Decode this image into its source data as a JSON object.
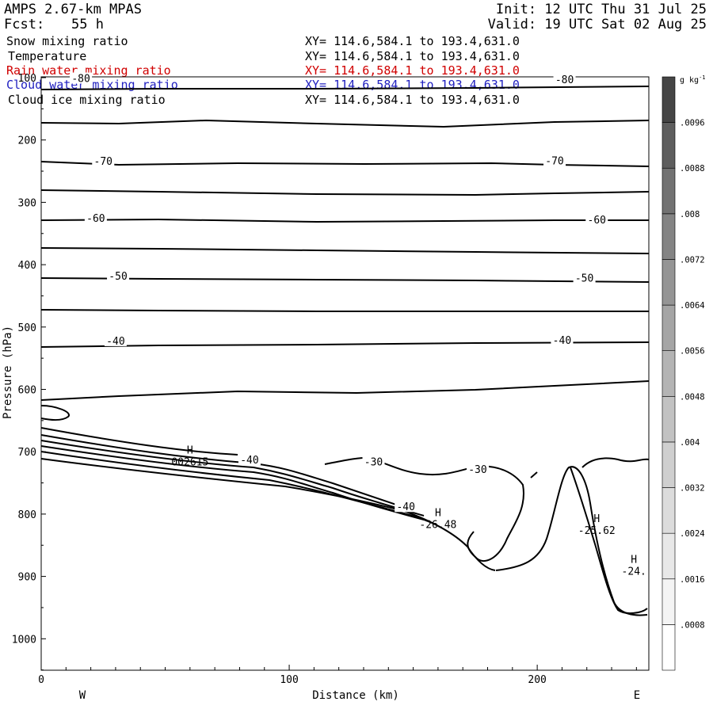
{
  "header": {
    "model": "AMPS 2.67-km MPAS",
    "fcst_label": "Fcst:",
    "fcst_value": "55 h",
    "init": "Init: 12 UTC Thu 31 Jul 25",
    "valid": "Valid: 19 UTC Sat 02 Aug 25"
  },
  "fields": [
    {
      "name": "Snow mixing ratio",
      "xy": "XY= 114.6,584.1 to 193.4,631.0",
      "color": "#000000"
    },
    {
      "name": "Temperature",
      "xy": "XY= 114.6,584.1 to 193.4,631.0",
      "color": "#000000"
    },
    {
      "name": "Rain water mixing ratio",
      "xy": "XY= 114.6,584.1 to 193.4,631.0",
      "color": "#d00000"
    },
    {
      "name": "Cloud water mixing ratio",
      "xy": "XY= 114.6,584.1 to 193.4,631.0",
      "color": "#2020c0"
    },
    {
      "name": "Cloud ice mixing ratio",
      "xy": "XY= 114.6,584.1 to 193.4,631.0",
      "color": "#000000"
    }
  ],
  "chart_data": {
    "type": "contour",
    "xlabel": "Distance (km)",
    "ylabel": "Pressure (hPa)",
    "xlim": [
      0,
      245
    ],
    "ylim": [
      1050,
      100
    ],
    "x_ticks": [
      0,
      100,
      200
    ],
    "y_ticks": [
      100,
      200,
      300,
      400,
      500,
      600,
      700,
      800,
      900,
      1000
    ],
    "x_end_labels": {
      "left": "W",
      "right": "E"
    },
    "isotherm_labels": [
      {
        "text": "-80",
        "x": 16,
        "p": 102
      },
      {
        "text": "-80",
        "x": 211,
        "p": 104
      },
      {
        "text": "-70",
        "x": 25,
        "p": 235
      },
      {
        "text": "-70",
        "x": 207,
        "p": 234
      },
      {
        "text": "-60",
        "x": 22,
        "p": 326
      },
      {
        "text": "-60",
        "x": 224,
        "p": 329
      },
      {
        "text": "-50",
        "x": 31,
        "p": 419
      },
      {
        "text": "-50",
        "x": 219,
        "p": 422
      },
      {
        "text": "-40",
        "x": 30,
        "p": 523
      },
      {
        "text": "-40",
        "x": 210,
        "p": 522
      },
      {
        "text": "-40",
        "x": 84,
        "p": 714
      },
      {
        "text": "-40",
        "x": 147,
        "p": 789
      },
      {
        "text": "-30",
        "x": 134,
        "p": 717
      },
      {
        "text": "-30",
        "x": 176,
        "p": 729
      }
    ],
    "extrema": [
      {
        "mark": "H",
        "value": "002615",
        "x": 60,
        "p": 703
      },
      {
        "mark": "H",
        "value": "-26.48",
        "x": 160,
        "p": 803
      },
      {
        "mark": "H",
        "value": "-25.62",
        "x": 224,
        "p": 813
      },
      {
        "mark": "H",
        "value": "-24.",
        "x": 239,
        "p": 878
      }
    ],
    "colorbar": {
      "unit": "g kg",
      "unit_exp": "-1",
      "levels": [
        ".0008",
        ".0016",
        ".0024",
        ".0032",
        ".004",
        ".0048",
        ".0056",
        ".0064",
        ".0072",
        ".008",
        ".0088",
        ".0096"
      ],
      "colors": [
        "#ffffff",
        "#f4f4f4",
        "#e8e8e8",
        "#dcdcdc",
        "#cfcfcf",
        "#c2c2c2",
        "#b4b4b4",
        "#a5a5a5",
        "#959595",
        "#848484",
        "#727272",
        "#5e5e5e",
        "#454545"
      ]
    }
  }
}
